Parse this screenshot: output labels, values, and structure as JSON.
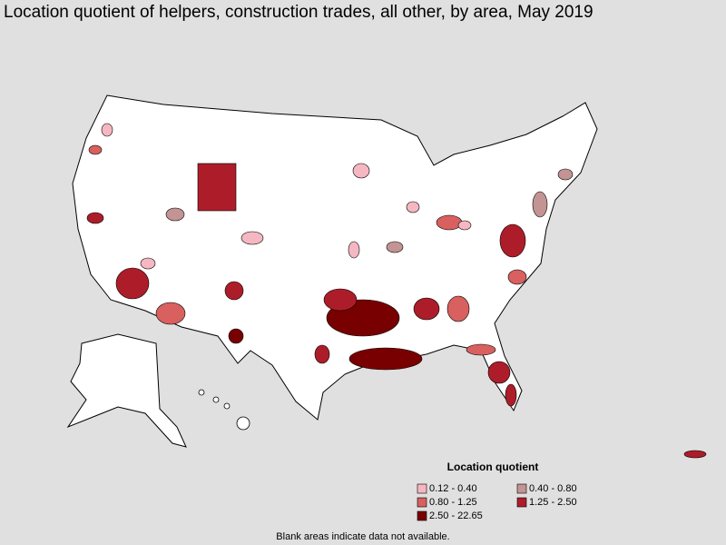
{
  "title": "Location quotient of helpers, construction trades, all other, by area, May 2019",
  "legend": {
    "title": "Location quotient",
    "items": [
      {
        "label": "0.12 - 0.40",
        "color": "#f5b7c1"
      },
      {
        "label": "0.40 - 0.80",
        "color": "#c39493"
      },
      {
        "label": "0.80 - 1.25",
        "color": "#d8605f"
      },
      {
        "label": "1.25 - 2.50",
        "color": "#ad1d29"
      },
      {
        "label": "2.50 - 22.65",
        "color": "#780000"
      }
    ]
  },
  "note": "Blank areas indicate data not available."
}
